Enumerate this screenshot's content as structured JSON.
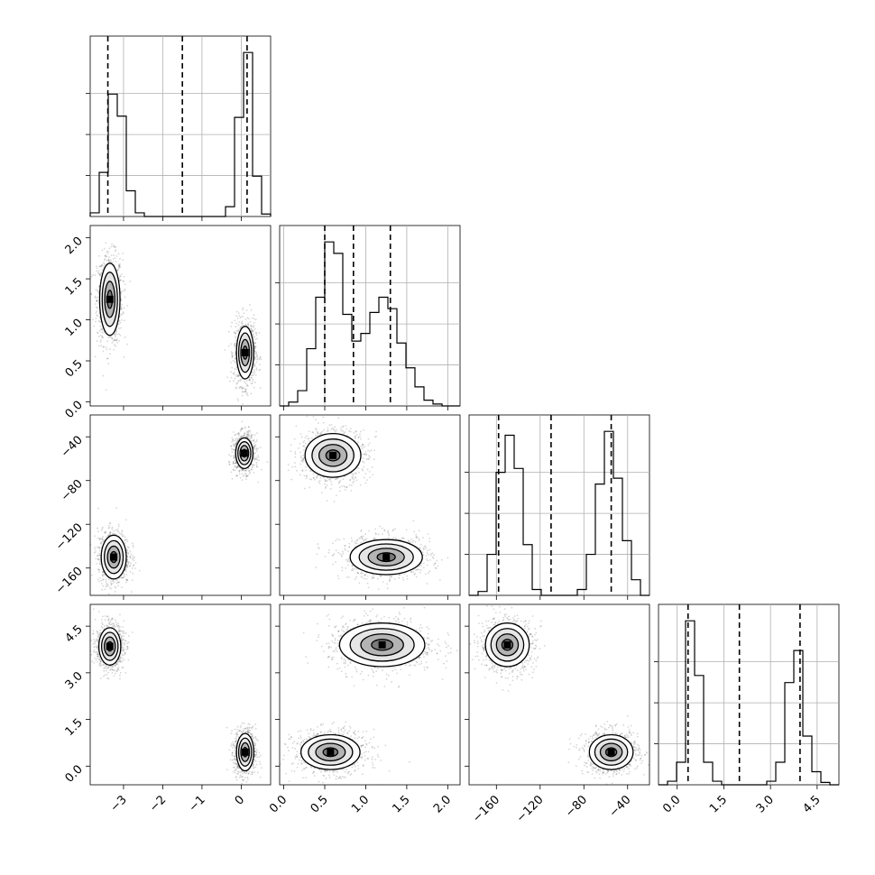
{
  "chart_data": {
    "type": "corner",
    "title": "",
    "grid": true,
    "params": [
      {
        "range": [
          -3.85,
          0.75
        ],
        "ticks": [
          -3,
          -2,
          -1,
          0
        ],
        "tick_labels": [
          "−3",
          "−2",
          "−1",
          "0"
        ]
      },
      {
        "range": [
          -0.05,
          2.15
        ],
        "ticks": [
          0.0,
          0.5,
          1.0,
          1.5,
          2.0
        ],
        "tick_labels": [
          "0.0",
          "0.5",
          "1.0",
          "1.5",
          "2.0"
        ]
      },
      {
        "range": [
          -185,
          -20
        ],
        "ticks": [
          -160,
          -120,
          -80,
          -40
        ],
        "tick_labels": [
          "−160",
          "−120",
          "−80",
          "−40"
        ]
      },
      {
        "range": [
          -0.6,
          5.2
        ],
        "ticks": [
          0.0,
          1.5,
          3.0,
          4.5
        ],
        "tick_labels": [
          "0.0",
          "1.5",
          "3.0",
          "4.5"
        ]
      }
    ],
    "quantiles": [
      [
        -3.4,
        -1.5,
        0.15
      ],
      [
        0.5,
        0.85,
        1.3
      ],
      [
        -158,
        -110,
        -55
      ],
      [
        0.35,
        2.0,
        3.95
      ]
    ],
    "histograms": [
      {
        "bins": [
          -3.85,
          -3.62,
          -3.39,
          -3.16,
          -2.93,
          -2.7,
          -2.47,
          -2.24,
          -2.01,
          -1.78,
          -1.55,
          -1.32,
          -1.09,
          -0.86,
          -0.63,
          -0.4,
          -0.17,
          0.06,
          0.29,
          0.52,
          0.75
        ],
        "counts": [
          3,
          36,
          100,
          82,
          21,
          3,
          0,
          0,
          0,
          0,
          0,
          0,
          0,
          0,
          0,
          8,
          81,
          134,
          33,
          2
        ]
      },
      {
        "bins": [
          -0.05,
          0.06,
          0.17,
          0.28,
          0.39,
          0.5,
          0.61,
          0.72,
          0.83,
          0.94,
          1.05,
          1.16,
          1.27,
          1.38,
          1.49,
          1.6,
          1.71,
          1.82,
          1.93,
          2.04,
          2.15
        ],
        "counts": [
          0,
          2,
          8,
          30,
          57,
          86,
          80,
          48,
          34,
          38,
          49,
          57,
          51,
          33,
          20,
          10,
          3,
          1,
          0,
          0
        ]
      },
      {
        "bins": [
          -185,
          -176.75,
          -168.5,
          -160.25,
          -152,
          -143.75,
          -135.5,
          -127.25,
          -119,
          -110.75,
          -102.5,
          -94.25,
          -86,
          -77.75,
          -69.5,
          -61.25,
          -53,
          -44.75,
          -36.5,
          -28.25,
          -20
        ],
        "counts": [
          0,
          2,
          21,
          63,
          82,
          65,
          26,
          3,
          0,
          0,
          0,
          0,
          3,
          21,
          57,
          84,
          60,
          28,
          8,
          0
        ]
      },
      {
        "bins": [
          -0.6,
          -0.31,
          -0.02,
          0.27,
          0.56,
          0.85,
          1.14,
          1.43,
          1.72,
          2.01,
          2.3,
          2.59,
          2.88,
          3.17,
          3.46,
          3.75,
          4.04,
          4.33,
          4.62,
          4.91,
          5.2
        ],
        "counts": [
          0,
          3,
          19,
          138,
          92,
          19,
          3,
          0,
          0,
          0,
          0,
          0,
          3,
          19,
          86,
          113,
          41,
          11,
          2,
          0
        ]
      }
    ],
    "modes": {
      "0_1": [
        {
          "x": -3.35,
          "y": 1.25,
          "sx": 0.13,
          "sy": 0.22
        },
        {
          "x": 0.1,
          "y": 0.6,
          "sx": 0.11,
          "sy": 0.16
        }
      ],
      "0_2": [
        {
          "x": -3.25,
          "y": -150,
          "sx": 0.16,
          "sy": 10
        },
        {
          "x": 0.08,
          "y": -55,
          "sx": 0.11,
          "sy": 7
        }
      ],
      "0_3": [
        {
          "x": -3.35,
          "y": 3.85,
          "sx": 0.14,
          "sy": 0.3
        },
        {
          "x": 0.1,
          "y": 0.45,
          "sx": 0.11,
          "sy": 0.3
        }
      ],
      "1_2": [
        {
          "x": 0.6,
          "y": -57,
          "sx": 0.17,
          "sy": 10
        },
        {
          "x": 1.25,
          "y": -150,
          "sx": 0.22,
          "sy": 8
        }
      ],
      "1_3": [
        {
          "x": 1.2,
          "y": 3.9,
          "sx": 0.26,
          "sy": 0.35
        },
        {
          "x": 0.57,
          "y": 0.45,
          "sx": 0.18,
          "sy": 0.28
        }
      ],
      "2_3": [
        {
          "x": -150,
          "y": 3.9,
          "sx": 10,
          "sy": 0.35
        },
        {
          "x": -55,
          "y": 0.45,
          "sx": 10,
          "sy": 0.28
        }
      ]
    },
    "xlabel": "",
    "ylabel": ""
  }
}
